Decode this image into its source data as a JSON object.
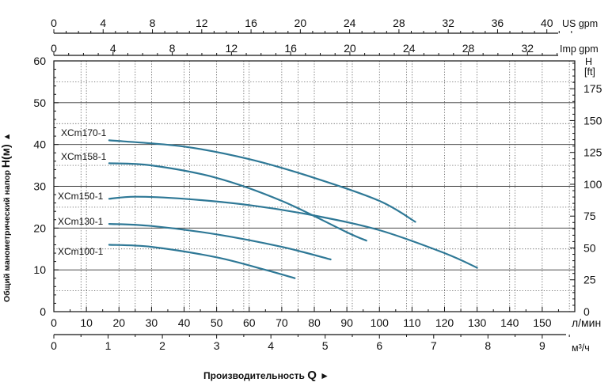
{
  "chart_data": {
    "type": "line",
    "primary_axes": {
      "x": {
        "unit": "л/мин",
        "range": [
          0,
          160
        ],
        "ticks": [
          "0",
          "10",
          "20",
          "30",
          "40",
          "50",
          "60",
          "70",
          "80",
          "90",
          "100",
          "110",
          "120",
          "130",
          "140",
          "150"
        ]
      },
      "y": {
        "range": [
          0,
          60
        ],
        "ticks": [
          "0",
          "10",
          "20",
          "30",
          "40",
          "50",
          "60"
        ]
      }
    },
    "secondary_axes": {
      "x_m3h": {
        "unit": "м³/ч",
        "ticks": [
          "0",
          "1",
          "2",
          "3",
          "4",
          "5",
          "6",
          "7",
          "8",
          "9"
        ]
      },
      "x_us_gpm": {
        "unit": "US gpm",
        "ticks": [
          "0",
          "4",
          "8",
          "12",
          "16",
          "20",
          "24",
          "28",
          "32",
          "36",
          "40"
        ]
      },
      "x_imp_gpm": {
        "unit": "Imp gpm",
        "ticks": [
          "0",
          "4",
          "8",
          "12",
          "16",
          "20",
          "24",
          "28",
          "32"
        ]
      },
      "y_ft": {
        "unit_line1": "H",
        "unit_line2": "[ft]",
        "ticks": [
          "0",
          "25",
          "50",
          "75",
          "100",
          "125",
          "150",
          "175"
        ]
      }
    },
    "ylabel_text": "Общий манометрический напор",
    "ylabel_symbol": "H(м)",
    "ylabel_arrow": "▲",
    "xlabel_text": "Производительность",
    "xlabel_symbol": "Q",
    "xlabel_arrow": "►",
    "series": [
      {
        "name": "XCm170-1",
        "x": [
          17,
          40,
          60,
          80,
          100,
          111
        ],
        "y": [
          41,
          39.5,
          36.5,
          32,
          26.5,
          21.5
        ]
      },
      {
        "name": "XCm158-1",
        "x": [
          17,
          30,
          50,
          70,
          90,
          96
        ],
        "y": [
          35.5,
          35,
          32,
          26.5,
          19,
          17
        ]
      },
      {
        "name": "XCm150-1",
        "x": [
          17,
          25,
          40,
          60,
          80,
          100,
          120,
          130
        ],
        "y": [
          27,
          27.5,
          27,
          25.5,
          23,
          19.5,
          14,
          10.5
        ]
      },
      {
        "name": "XCm130-1",
        "x": [
          17,
          30,
          50,
          70,
          85
        ],
        "y": [
          21,
          20.5,
          18.5,
          15.5,
          12.5
        ]
      },
      {
        "name": "XCm100-1",
        "x": [
          17,
          30,
          50,
          65,
          74
        ],
        "y": [
          16,
          15.5,
          13,
          10,
          8
        ]
      }
    ],
    "grid": true
  }
}
